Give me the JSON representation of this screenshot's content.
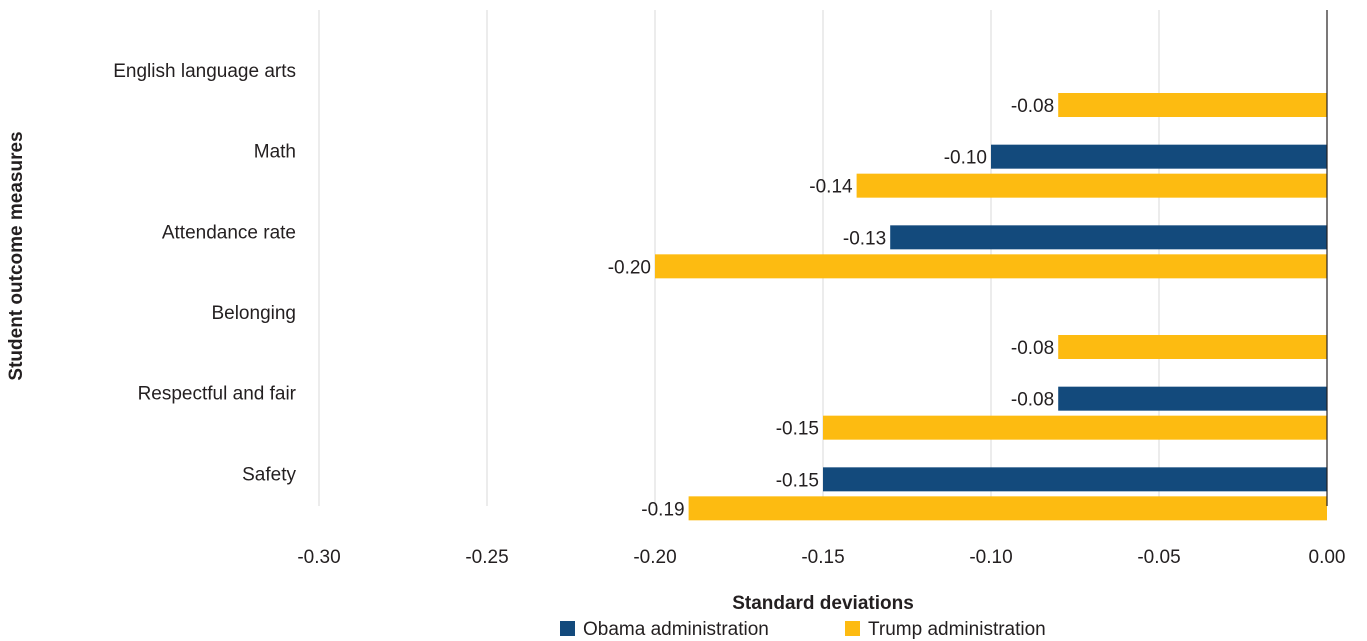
{
  "chart_data": {
    "type": "bar",
    "orientation": "horizontal",
    "categories": [
      "English language arts",
      "Math",
      "Attendance rate",
      "Belonging",
      "Respectful and fair",
      "Safety"
    ],
    "series": [
      {
        "name": "Obama administration",
        "color": "#134a7c",
        "values": [
          null,
          -0.1,
          -0.13,
          null,
          -0.08,
          -0.15
        ],
        "labels": [
          "",
          "-0.10",
          "-0.13",
          "",
          "-0.08",
          "-0.15"
        ]
      },
      {
        "name": "Trump administration",
        "color": "#fdbb11",
        "values": [
          -0.08,
          -0.14,
          -0.2,
          -0.08,
          -0.15,
          -0.19
        ],
        "labels": [
          "-0.08",
          "-0.14",
          "-0.20",
          "-0.08",
          "-0.15",
          "-0.19"
        ]
      }
    ],
    "xticks": [
      "-0.30",
      "-0.25",
      "-0.20",
      "-0.15",
      "-0.10",
      "-0.05",
      "0.00"
    ],
    "xtick_values": [
      -0.3,
      -0.25,
      -0.2,
      -0.15,
      -0.1,
      -0.05,
      0.0
    ],
    "xlim": [
      -0.3,
      0.0
    ],
    "xlabel": "Standard deviations",
    "ylabel": "Student outcome measures",
    "grid": true,
    "legend_position": "bottom"
  }
}
